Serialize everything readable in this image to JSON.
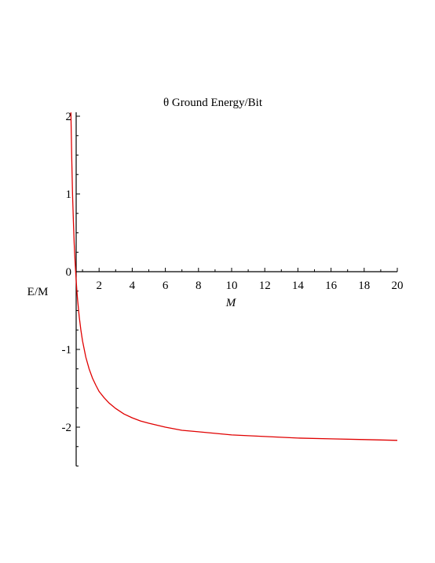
{
  "chart_data": {
    "type": "line",
    "title": "θ Ground Energy/Bit",
    "xlabel": "M",
    "ylabel": "E/M",
    "xlim": [
      0,
      20
    ],
    "ylim": [
      -2.5,
      2.05
    ],
    "xticks": [
      2,
      4,
      6,
      8,
      10,
      12,
      14,
      16,
      18,
      20
    ],
    "yticks": [
      -2,
      -1,
      0,
      1,
      2
    ],
    "grid": false,
    "line_color": "#e00000",
    "series": [
      {
        "x": [
          0.3,
          0.35,
          0.4,
          0.45,
          0.5,
          0.55,
          0.6,
          0.65,
          0.7,
          0.8,
          0.9,
          1.0,
          1.2,
          1.4,
          1.6,
          1.8,
          2.0,
          2.3,
          2.6,
          3.0,
          3.5,
          4.0,
          4.5,
          5.0,
          6.0,
          7.0,
          8.0,
          10.0,
          12.0,
          14.0,
          16.0,
          18.0,
          20.0
        ],
        "y": [
          2.05,
          1.44,
          0.99,
          0.64,
          0.36,
          0.13,
          -0.06,
          -0.22,
          -0.36,
          -0.58,
          -0.75,
          -0.89,
          -1.1,
          -1.25,
          -1.37,
          -1.46,
          -1.54,
          -1.62,
          -1.69,
          -1.76,
          -1.83,
          -1.88,
          -1.92,
          -1.95,
          -2.0,
          -2.04,
          -2.06,
          -2.1,
          -2.12,
          -2.14,
          -2.15,
          -2.16,
          -2.17
        ]
      }
    ]
  }
}
